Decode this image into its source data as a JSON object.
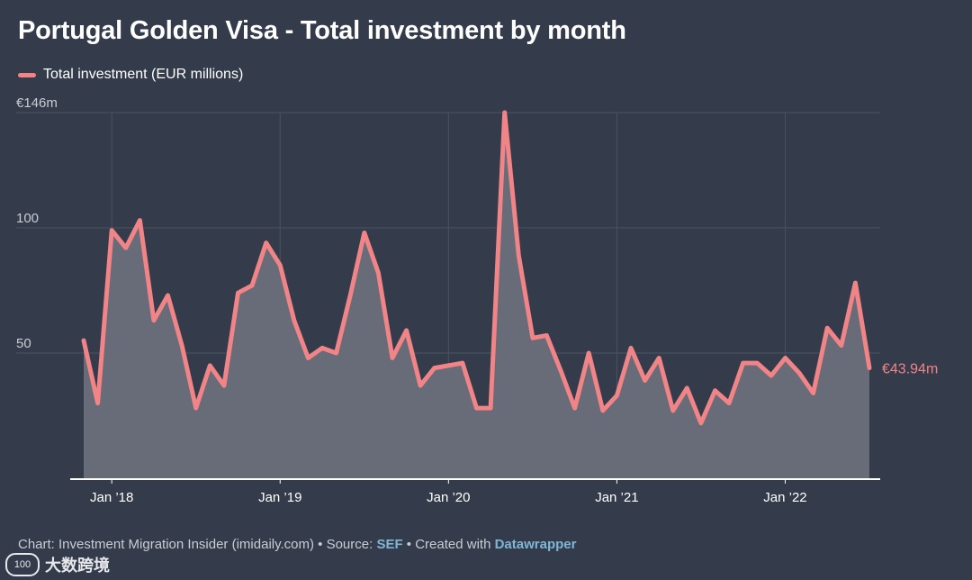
{
  "title": "Portugal Golden Visa - Total investment by month",
  "legend": {
    "label": "Total investment (EUR millions)"
  },
  "colors": {
    "line": "#f08486",
    "area": "#676c78",
    "background": "#343c4c",
    "grid": "#4b5263"
  },
  "footer": {
    "prefix": "Chart: Investment Migration Insider (imidaily.com) • Source: ",
    "source": "SEF",
    "middle": " • Created with ",
    "tool": "Datawrapper"
  },
  "watermark": {
    "logo": "100",
    "text": "大数跨境"
  },
  "chart_data": {
    "type": "area",
    "title": "Portugal Golden Visa - Total investment by month",
    "series": [
      {
        "name": "Total investment (EUR millions)",
        "x": [
          "2017-11",
          "2017-12",
          "2018-01",
          "2018-02",
          "2018-03",
          "2018-04",
          "2018-05",
          "2018-06",
          "2018-07",
          "2018-08",
          "2018-09",
          "2018-10",
          "2018-11",
          "2018-12",
          "2019-01",
          "2019-02",
          "2019-03",
          "2019-04",
          "2019-05",
          "2019-06",
          "2019-07",
          "2019-08",
          "2019-09",
          "2019-10",
          "2019-11",
          "2019-12",
          "2020-01",
          "2020-02",
          "2020-03",
          "2020-04",
          "2020-05",
          "2020-06",
          "2020-07",
          "2020-08",
          "2020-09",
          "2020-10",
          "2020-11",
          "2020-12",
          "2021-01",
          "2021-02",
          "2021-03",
          "2021-04",
          "2021-05",
          "2021-06",
          "2021-07",
          "2021-08",
          "2021-09",
          "2021-10",
          "2021-11",
          "2021-12",
          "2022-01",
          "2022-02",
          "2022-03",
          "2022-04",
          "2022-05",
          "2022-06",
          "2022-07"
        ],
        "values": [
          55,
          30,
          99,
          92,
          103,
          63,
          73,
          53,
          28,
          45,
          37,
          74,
          77,
          94,
          85,
          63,
          48,
          52,
          50,
          73,
          98,
          82,
          48,
          59,
          37,
          44,
          45,
          46,
          28,
          28,
          146,
          89,
          56,
          57,
          43,
          28,
          50,
          27,
          33,
          52,
          39,
          48,
          27,
          36,
          22,
          35,
          30,
          46,
          46,
          41,
          48,
          42,
          34,
          60,
          53,
          78,
          44
        ]
      }
    ],
    "x_ticks": [
      "Jan ’18",
      "Jan ’19",
      "Jan ’20",
      "Jan ’21",
      "Jan ’22"
    ],
    "y_ticks": [
      "50",
      "100",
      "€146m"
    ],
    "ylim": [
      0,
      146
    ],
    "end_label": "€43.94m",
    "grid": true,
    "legend_position": "top-left"
  }
}
